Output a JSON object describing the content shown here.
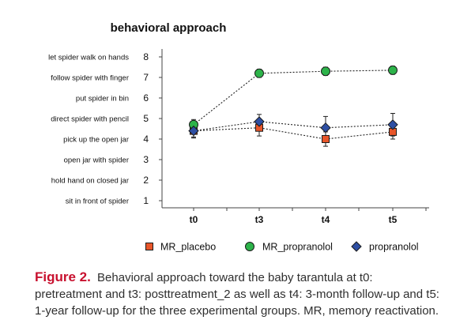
{
  "chart_data": {
    "type": "line",
    "title": "behavioral approach",
    "categories": [
      "t0",
      "t3",
      "t4",
      "t5"
    ],
    "ylim": [
      1,
      8
    ],
    "yticks": [
      1,
      2,
      3,
      4,
      5,
      6,
      7,
      8
    ],
    "ytick_text_labels": [
      "sit in front of spider",
      "hold hand on closed jar",
      "open jar with spider",
      "pick up the open jar",
      "direct spider with pencil",
      "put spider in bin",
      "follow spider with finger",
      "let spider walk on hands"
    ],
    "legend_position": "bottom",
    "grid": false,
    "series": [
      {
        "name": "MR_placebo",
        "marker": "square",
        "color": "#e8562a",
        "values": [
          4.4,
          4.55,
          4.0,
          4.35
        ],
        "errors": [
          0.35,
          0.4,
          0.35,
          0.35
        ]
      },
      {
        "name": "MR_propranolol",
        "marker": "circle",
        "color": "#2db34a",
        "values": [
          4.7,
          7.2,
          7.3,
          7.35
        ],
        "errors": [
          0.25,
          0.2,
          0.2,
          0.2
        ]
      },
      {
        "name": "propranolol",
        "marker": "diamond",
        "color": "#2e4fa3",
        "values": [
          4.4,
          4.85,
          4.55,
          4.7
        ],
        "errors": [
          0.3,
          0.35,
          0.55,
          0.55
        ]
      }
    ]
  },
  "caption": {
    "label": "Figure 2.",
    "text": "Behavioral approach toward the baby tarantula at t0: pretreatment and t3: posttreatment_2 as well as t4: 3-month follow-up and t5: 1-year follow-up for the three experimental groups. MR, memory reactivation."
  }
}
